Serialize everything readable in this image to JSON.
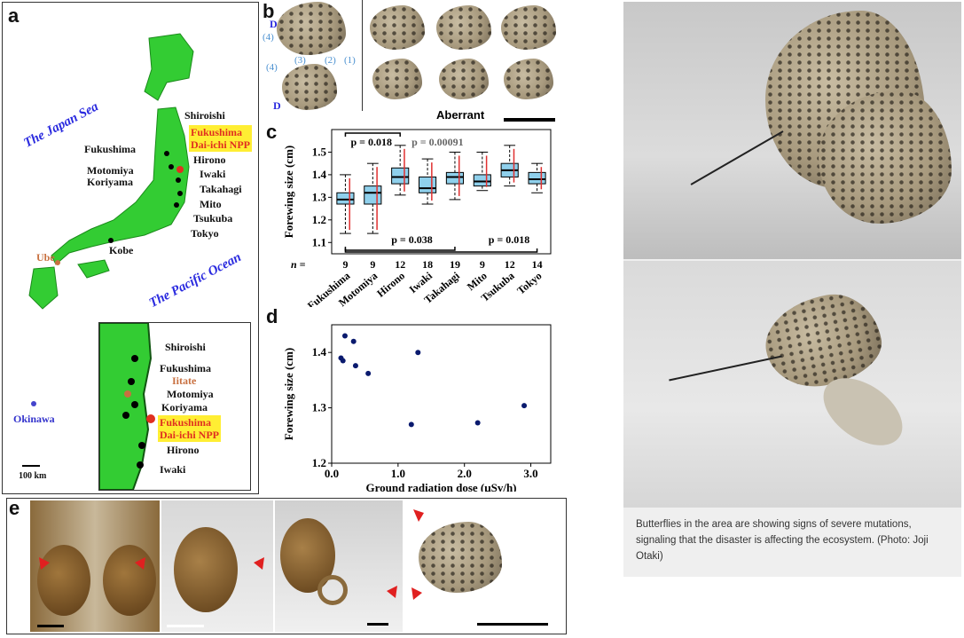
{
  "panel_a": {
    "letter": "a",
    "sea_labels": [
      "The Japan Sea",
      "The Pacific Ocean"
    ],
    "sites": [
      "Shiroishi",
      "Fukushima",
      "Motomiya",
      "Koriyama",
      "Hirono",
      "Iwaki",
      "Takahagi",
      "Mito",
      "Tsukuba",
      "Tokyo",
      "Kobe"
    ],
    "npp_label_line1": "Fukushima",
    "npp_label_line2": "Dai-ichi NPP",
    "other_sites": [
      "Ube",
      "Okinawa"
    ],
    "inset_sites": [
      "Shiroishi",
      "Fukushima",
      "Iitate",
      "Motomiya",
      "Koriyama",
      "Hirono",
      "Iwaki"
    ],
    "scale_label": "100 km"
  },
  "panel_b": {
    "letter": "b",
    "labels": [
      "D",
      "(4)",
      "(4)",
      "(3)",
      "(2)",
      "(1)",
      "D"
    ],
    "aberrant_label": "Aberrant"
  },
  "panel_c": {
    "letter": "c",
    "pvalues": [
      "p = 0.018",
      "p = 0.00091",
      "p = 0.038",
      "p = 0.018"
    ],
    "n_label": "n ="
  },
  "panel_d": {
    "letter": "d"
  },
  "panel_e": {
    "letter": "e"
  },
  "photo_caption": "Butterflies in the area are showing signs of severe mutations, signaling that the disaster is affecting the ecosystem. (Photo: Joji Otaki)",
  "chart_data": [
    {
      "type": "box",
      "ylabel": "Forewing size (cm)",
      "ylim": [
        1.05,
        1.6
      ],
      "yticks": [
        1.1,
        1.2,
        1.3,
        1.4,
        1.5
      ],
      "categories": [
        "Fukushima",
        "Motomiya",
        "Hirono",
        "Iwaki",
        "Takahagi",
        "Mito",
        "Tsukuba",
        "Tokyo"
      ],
      "n": [
        9,
        9,
        12,
        18,
        19,
        9,
        12,
        14
      ],
      "boxes": [
        {
          "q1": 1.27,
          "median": 1.29,
          "q3": 1.32,
          "min": 1.14,
          "max": 1.4
        },
        {
          "q1": 1.27,
          "median": 1.32,
          "q3": 1.35,
          "min": 1.14,
          "max": 1.45
        },
        {
          "q1": 1.36,
          "median": 1.39,
          "q3": 1.43,
          "min": 1.31,
          "max": 1.53
        },
        {
          "q1": 1.32,
          "median": 1.34,
          "q3": 1.39,
          "min": 1.27,
          "max": 1.47
        },
        {
          "q1": 1.36,
          "median": 1.39,
          "q3": 1.41,
          "min": 1.29,
          "max": 1.5
        },
        {
          "q1": 1.35,
          "median": 1.37,
          "q3": 1.4,
          "min": 1.33,
          "max": 1.5
        },
        {
          "q1": 1.39,
          "median": 1.42,
          "q3": 1.45,
          "min": 1.35,
          "max": 1.53
        },
        {
          "q1": 1.36,
          "median": 1.38,
          "q3": 1.41,
          "min": 1.32,
          "max": 1.45
        }
      ]
    },
    {
      "type": "scatter",
      "xlabel": "Ground radiation dose (μSv/h)",
      "ylabel": "Forewing size (cm)",
      "xlim": [
        0,
        3.3
      ],
      "ylim": [
        1.2,
        1.45
      ],
      "xticks": [
        0.0,
        1.0,
        2.0,
        3.0
      ],
      "yticks": [
        1.2,
        1.3,
        1.4
      ],
      "points": [
        {
          "x": 0.14,
          "y": 1.39
        },
        {
          "x": 0.17,
          "y": 1.385
        },
        {
          "x": 0.2,
          "y": 1.43
        },
        {
          "x": 0.33,
          "y": 1.42
        },
        {
          "x": 0.36,
          "y": 1.376
        },
        {
          "x": 0.55,
          "y": 1.362
        },
        {
          "x": 1.2,
          "y": 1.27
        },
        {
          "x": 1.3,
          "y": 1.4
        },
        {
          "x": 2.2,
          "y": 1.273
        },
        {
          "x": 2.9,
          "y": 1.304
        }
      ]
    }
  ]
}
